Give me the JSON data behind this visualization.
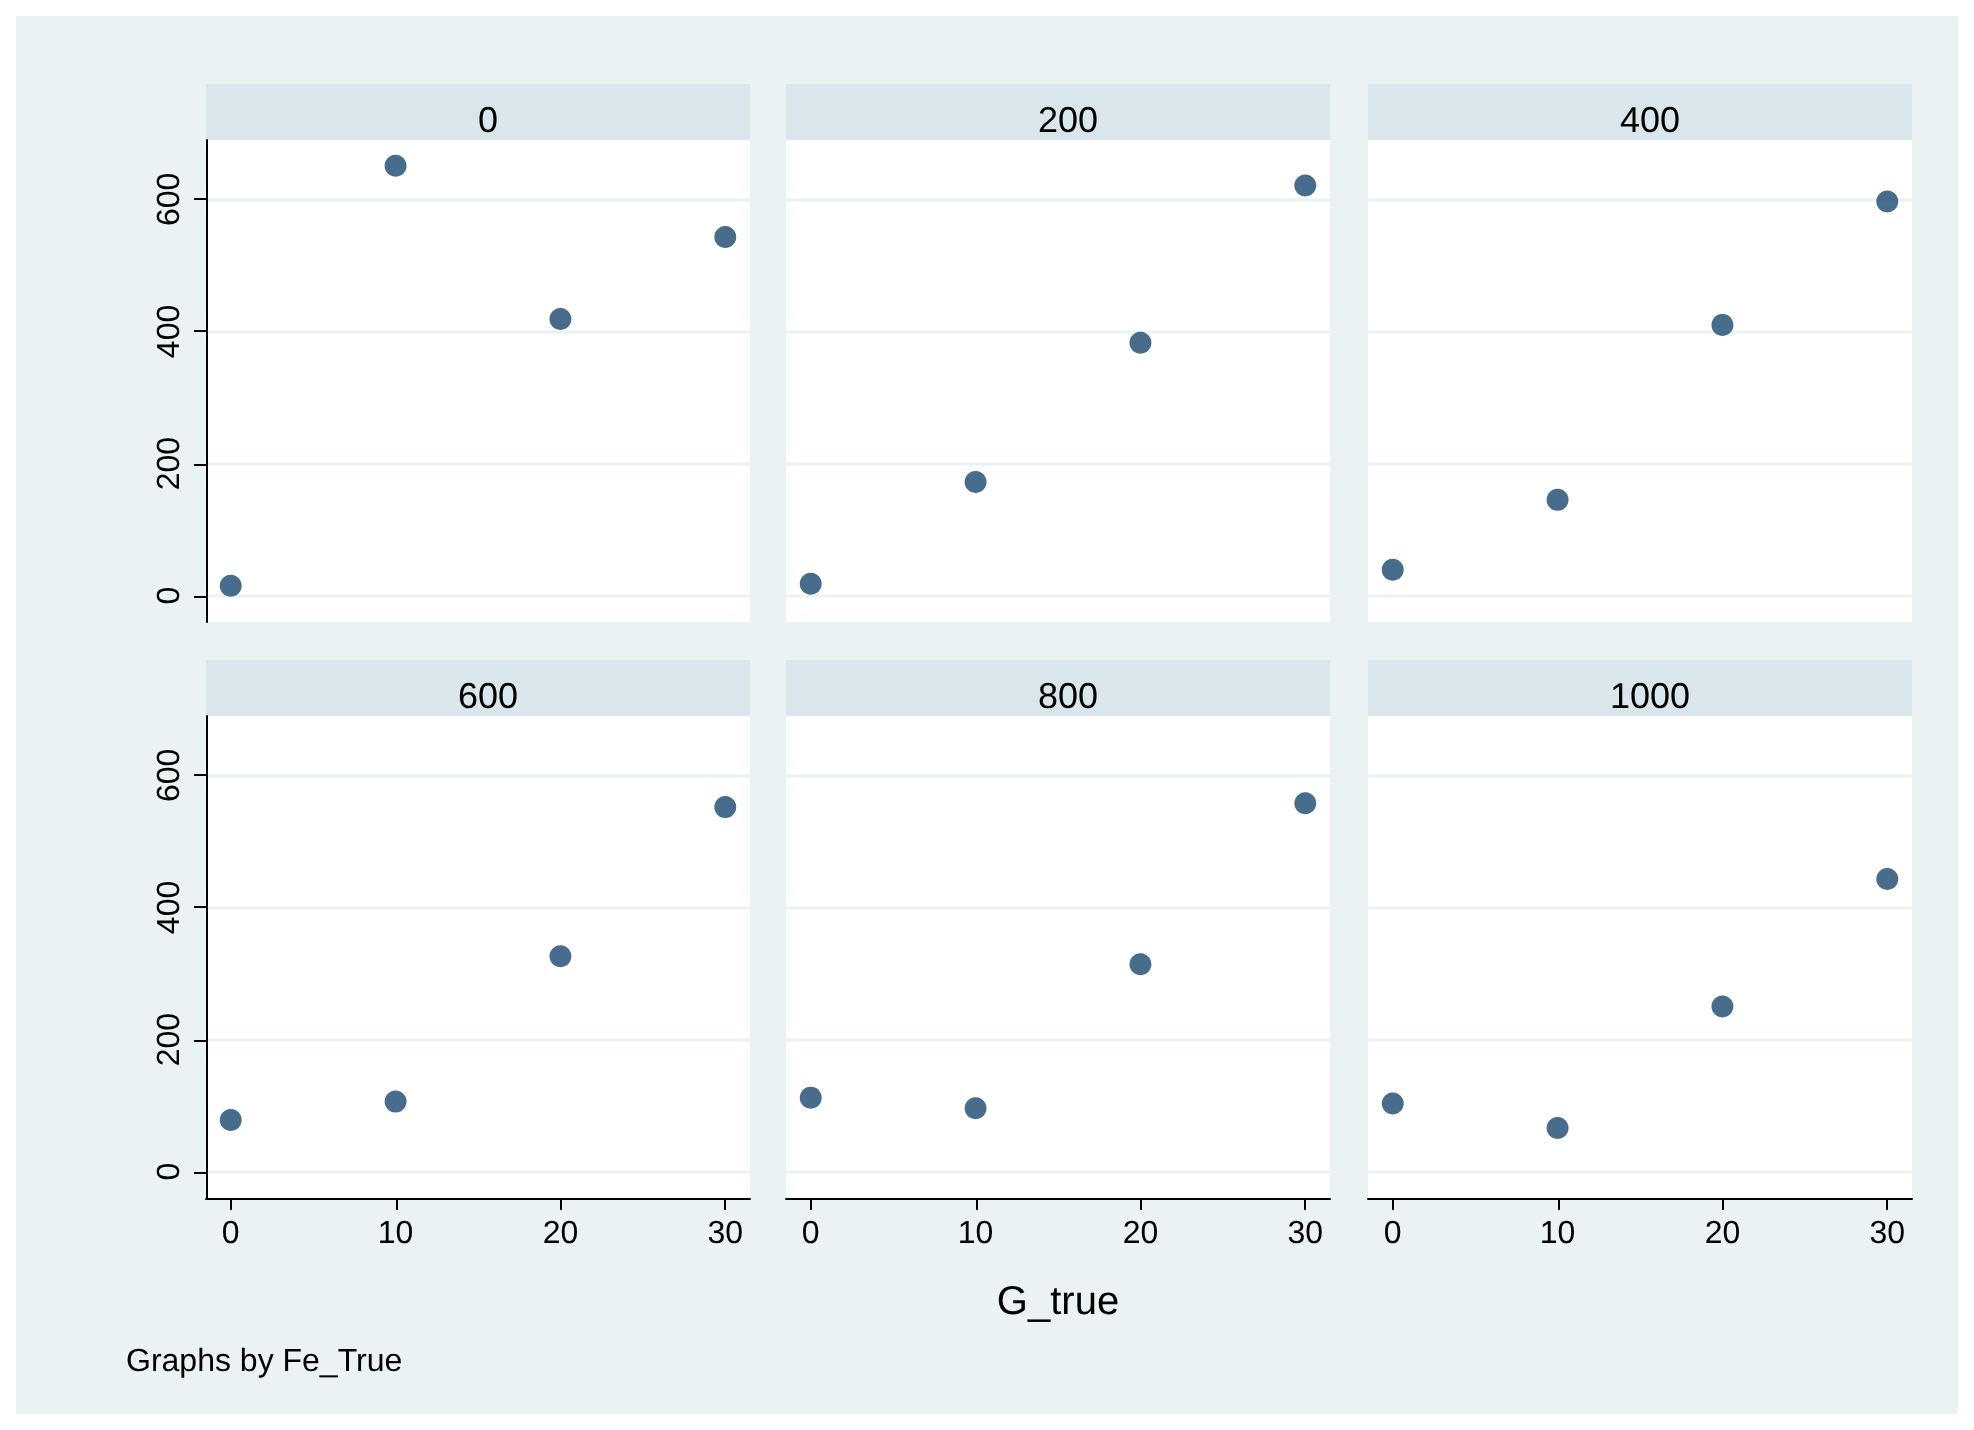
{
  "chart_data": [
    {
      "type": "scatter",
      "title": "0",
      "x": [
        0,
        10,
        20,
        30
      ],
      "values": [
        15,
        651,
        419,
        543
      ],
      "color": "#1a476f",
      "marker": "circle",
      "xlim": [
        -1.5,
        31.5
      ],
      "xticks": [
        0,
        10,
        20,
        30
      ],
      "ylim": [
        -40,
        690
      ],
      "yticks": [
        0,
        200,
        400,
        600
      ],
      "grid": "y",
      "tick_labels": "y"
    },
    {
      "type": "scatter",
      "title": "200",
      "x": [
        0,
        10,
        20,
        30
      ],
      "values": [
        18,
        172,
        383,
        621
      ],
      "color": "#1a476f",
      "marker": "circle",
      "xlim": [
        -1.5,
        31.5
      ],
      "xticks": [
        0,
        10,
        20,
        30
      ],
      "ylim": [
        -40,
        690
      ],
      "yticks": [
        0,
        200,
        400,
        600
      ],
      "grid": "y",
      "tick_labels": false
    },
    {
      "type": "scatter",
      "title": "400",
      "x": [
        0,
        10,
        20,
        30
      ],
      "values": [
        39,
        145,
        410,
        597
      ],
      "color": "#1a476f",
      "marker": "circle",
      "xlim": [
        -1.5,
        31.5
      ],
      "xticks": [
        0,
        10,
        20,
        30
      ],
      "ylim": [
        -40,
        690
      ],
      "yticks": [
        0,
        200,
        400,
        600
      ],
      "grid": "y",
      "tick_labels": false
    },
    {
      "type": "scatter",
      "title": "600",
      "x": [
        0,
        10,
        20,
        30
      ],
      "values": [
        78,
        106,
        326,
        552
      ],
      "color": "#1a476f",
      "marker": "circle",
      "xlim": [
        -1.5,
        31.5
      ],
      "xticks": [
        0,
        10,
        20,
        30
      ],
      "ylim": [
        -40,
        690
      ],
      "yticks": [
        0,
        200,
        400,
        600
      ],
      "grid": "y",
      "annotations": [
        "Graphs by Fe_True"
      ]
    },
    {
      "type": "scatter",
      "title": "800",
      "xlabel": "G_true",
      "x": [
        0,
        10,
        20,
        30
      ],
      "values": [
        112,
        96,
        314,
        558
      ],
      "color": "#1a476f",
      "marker": "circle",
      "xlim": [
        -1.5,
        31.5
      ],
      "xticks": [
        0,
        10,
        20,
        30
      ],
      "ylim": [
        -40,
        690
      ],
      "yticks": [
        0,
        200,
        400,
        600
      ],
      "grid": "y",
      "tick_labels": "x"
    },
    {
      "type": "scatter",
      "title": "1000",
      "x": [
        0,
        10,
        20,
        30
      ],
      "values": [
        103,
        66,
        250,
        443
      ],
      "color": "#1a476f",
      "marker": "circle",
      "xlim": [
        -1.5,
        31.5
      ],
      "xticks": [
        0,
        10,
        20,
        30
      ],
      "ylim": [
        -40,
        690
      ],
      "yticks": [
        0,
        200,
        400,
        600
      ],
      "grid": "y",
      "tick_labels": "x"
    }
  ]
}
